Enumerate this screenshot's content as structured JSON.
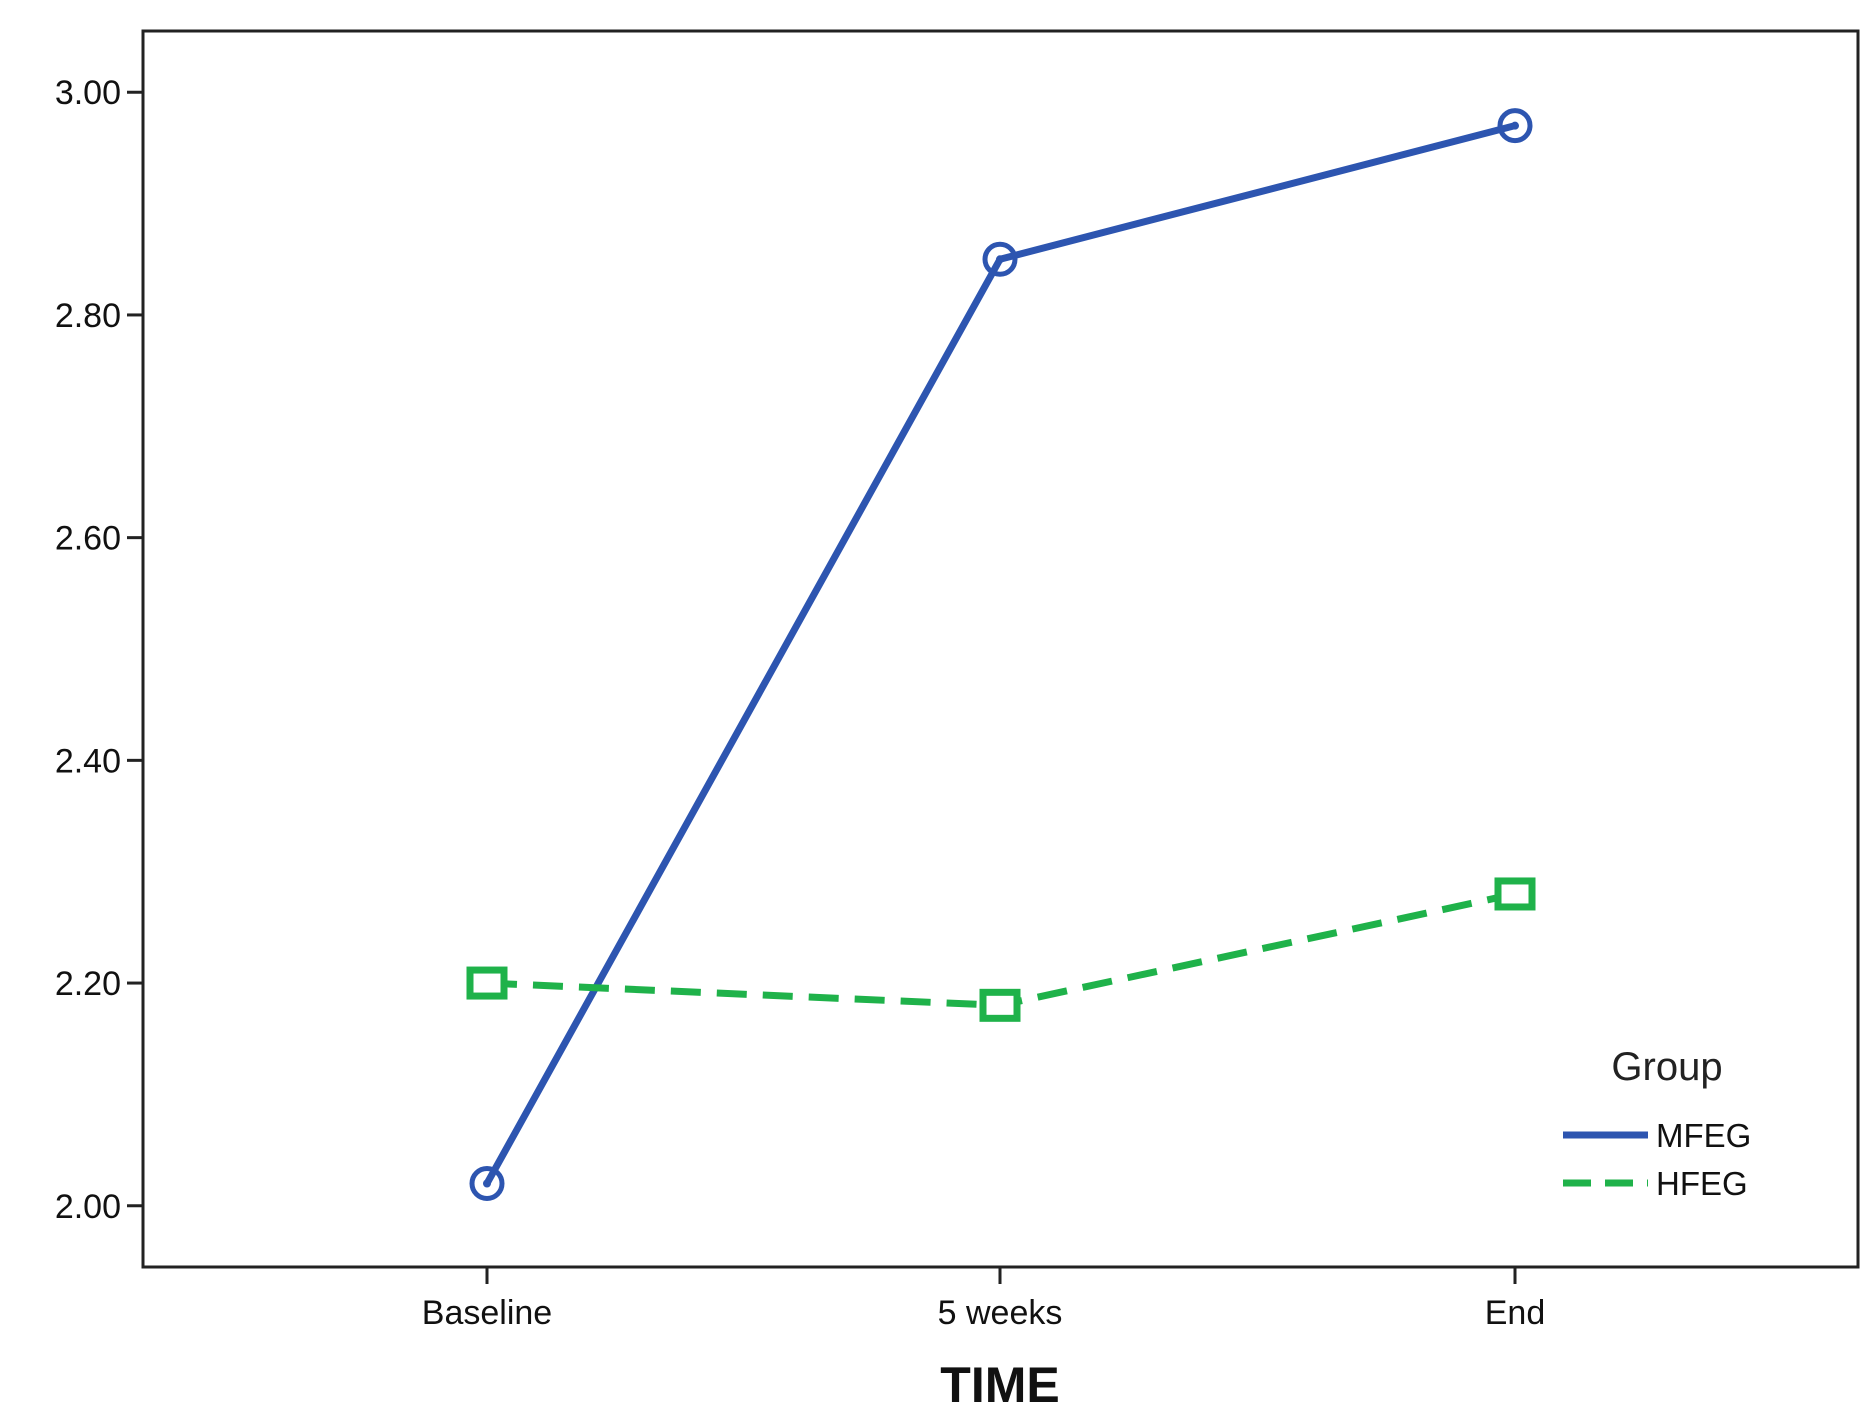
{
  "chart_data": {
    "type": "line",
    "title": "",
    "xlabel": "TIME",
    "ylabel": "",
    "categories": [
      "Baseline",
      "5 weeks",
      "End"
    ],
    "ylim": [
      1.945,
      3.055
    ],
    "yticks": [
      "2.00",
      "2.20",
      "2.40",
      "2.60",
      "2.80",
      "3.00"
    ],
    "grid": false,
    "legend": {
      "title": "Group",
      "placement": "bottom-right"
    },
    "series": [
      {
        "name": "MFEG",
        "values": [
          2.02,
          2.85,
          2.97
        ],
        "color": "#2d55b0",
        "style": "solid",
        "marker": "circle"
      },
      {
        "name": "HFEG",
        "values": [
          2.2,
          2.18,
          2.28
        ],
        "color": "#1fb24a",
        "style": "dashed",
        "marker": "square"
      }
    ]
  }
}
